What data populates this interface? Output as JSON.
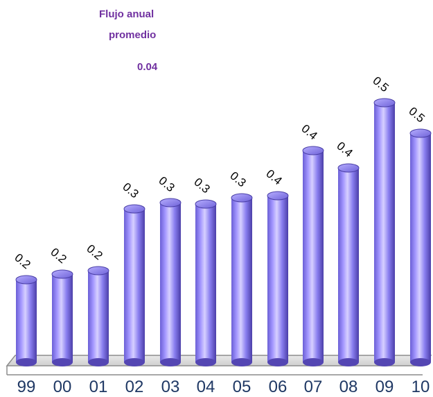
{
  "annotation": {
    "line1": "Flujo anual",
    "line2": "promedio",
    "value": "0.04"
  },
  "chart_data": {
    "type": "bar",
    "title": "",
    "xlabel": "",
    "ylabel": "",
    "categories": [
      "99",
      "00",
      "01",
      "02",
      "03",
      "04",
      "05",
      "06",
      "07",
      "08",
      "09",
      "10"
    ],
    "values": [
      0.2,
      0.2,
      0.2,
      0.3,
      0.3,
      0.3,
      0.3,
      0.4,
      0.4,
      0.4,
      0.5,
      0.5
    ],
    "value_labels": [
      "0.2",
      "0.2",
      "0.2",
      "0.3",
      "0.3",
      "0.3",
      "0.3",
      "0.4",
      "0.4",
      "0.4",
      "0.5",
      "0.5"
    ],
    "grid": false,
    "legend": "none"
  },
  "colors": {
    "annotation": "#7030a0",
    "bar_light": "#d9d2ff",
    "bar_mid": "#8f80ef",
    "bar_dark": "#5b4cc0",
    "tick_text": "#1f3864",
    "baseline": "#8c8c8c"
  }
}
